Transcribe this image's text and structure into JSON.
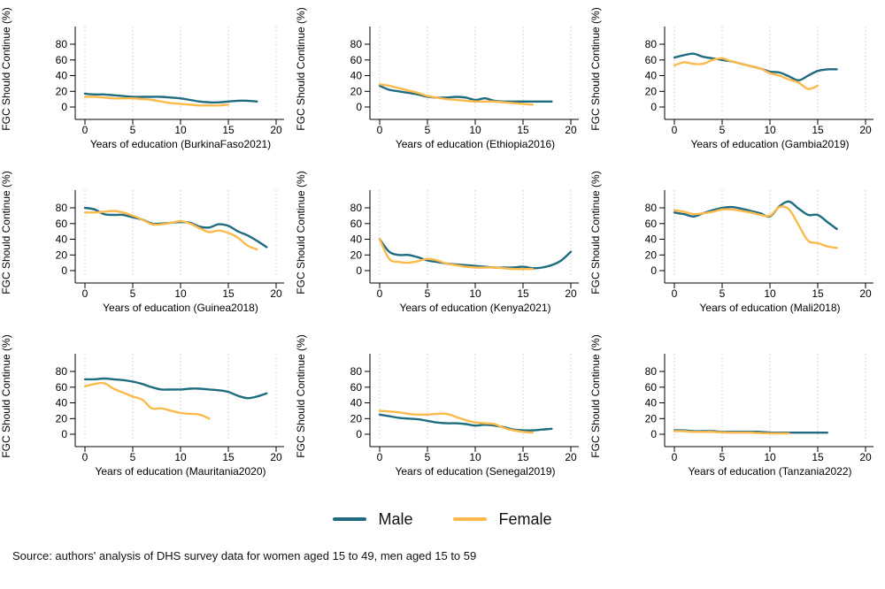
{
  "colors": {
    "male": "#1f6b80",
    "female": "#fbba4b",
    "axis": "#000000",
    "grid": "#c8c8c8",
    "text": "#000000"
  },
  "axes": {
    "ylabel": "FGC Should Continue (%)",
    "xlabel_prefix": "Years of education",
    "yticks": [
      0,
      20,
      40,
      60,
      80
    ],
    "xticks": [
      0,
      5,
      10,
      15,
      20
    ],
    "xlim": [
      0,
      20
    ],
    "grid": "vertical-dotted",
    "legend_position": "bottom-center"
  },
  "legend": {
    "items": [
      {
        "label": "Male",
        "color_key": "male"
      },
      {
        "label": "Female",
        "color_key": "female"
      }
    ]
  },
  "source_note": "Source: authors' analysis of DHS survey data for women aged 15 to 49, men aged 15 to 59",
  "chart_data": [
    {
      "type": "line",
      "xlabel": "Years of education (BurkinaFaso2021)",
      "series": [
        {
          "name": "Male",
          "x_start": 0,
          "x_step": 1,
          "values": [
            17,
            16,
            16,
            15,
            14,
            13,
            13,
            13,
            13,
            12,
            11,
            9,
            7,
            6,
            6,
            7,
            8,
            8,
            7
          ]
        },
        {
          "name": "Female",
          "x_start": 0,
          "x_step": 1,
          "values": [
            13,
            13,
            12,
            11,
            11,
            11,
            10,
            9,
            7,
            5,
            4,
            3,
            2,
            2,
            2,
            3
          ]
        }
      ]
    },
    {
      "type": "line",
      "xlabel": "Years of education (Ethiopia2016)",
      "series": [
        {
          "name": "Male",
          "x_start": 0,
          "x_step": 1,
          "values": [
            27,
            22,
            20,
            18,
            16,
            13,
            12,
            12,
            13,
            12,
            9,
            11,
            8,
            7,
            7,
            7,
            7,
            7,
            7
          ]
        },
        {
          "name": "Female",
          "x_start": 0,
          "x_step": 1,
          "values": [
            29,
            27,
            24,
            21,
            18,
            14,
            12,
            10,
            9,
            8,
            7,
            7,
            7,
            6,
            5,
            4,
            3
          ]
        }
      ]
    },
    {
      "type": "line",
      "xlabel": "Years of education (Gambia2019)",
      "series": [
        {
          "name": "Male",
          "x_start": 0,
          "x_step": 1,
          "values": [
            63,
            66,
            68,
            64,
            62,
            60,
            58,
            55,
            52,
            49,
            45,
            44,
            39,
            34,
            40,
            46,
            48,
            48
          ]
        },
        {
          "name": "Female",
          "x_start": 0,
          "x_step": 1,
          "values": [
            53,
            57,
            55,
            55,
            60,
            62,
            58,
            55,
            52,
            49,
            43,
            40,
            35,
            31,
            23,
            27
          ]
        }
      ]
    },
    {
      "type": "line",
      "xlabel": "Years of education (Guinea2018)",
      "series": [
        {
          "name": "Male",
          "x_start": 0,
          "x_step": 1,
          "values": [
            80,
            78,
            72,
            71,
            71,
            68,
            65,
            60,
            60,
            61,
            62,
            61,
            56,
            55,
            59,
            57,
            50,
            45,
            38,
            30
          ]
        },
        {
          "name": "Female",
          "x_start": 0,
          "x_step": 1,
          "values": [
            74,
            74,
            75,
            76,
            74,
            70,
            65,
            59,
            59,
            61,
            63,
            60,
            54,
            49,
            51,
            48,
            42,
            32,
            27
          ]
        }
      ]
    },
    {
      "type": "line",
      "xlabel": "Years of education (Kenya2021)",
      "series": [
        {
          "name": "Male",
          "x_start": 0,
          "x_step": 1,
          "values": [
            40,
            24,
            20,
            20,
            17,
            13,
            11,
            9,
            8,
            7,
            6,
            5,
            4,
            4,
            4,
            5,
            3,
            4,
            7,
            13,
            24
          ]
        },
        {
          "name": "Female",
          "x_start": 0,
          "x_step": 1,
          "values": [
            40,
            15,
            11,
            10,
            12,
            15,
            13,
            9,
            7,
            5,
            4,
            4,
            4,
            3,
            2,
            2,
            2
          ]
        }
      ]
    },
    {
      "type": "line",
      "xlabel": "Years of education (Mali2018)",
      "series": [
        {
          "name": "Male",
          "x_start": 0,
          "x_step": 1,
          "values": [
            74,
            72,
            69,
            73,
            77,
            80,
            81,
            79,
            76,
            73,
            69,
            82,
            88,
            79,
            71,
            71,
            62,
            53
          ]
        },
        {
          "name": "Female",
          "x_start": 0,
          "x_step": 1,
          "values": [
            77,
            75,
            72,
            73,
            75,
            78,
            78,
            76,
            74,
            71,
            70,
            81,
            78,
            58,
            38,
            35,
            31,
            29
          ]
        }
      ]
    },
    {
      "type": "line",
      "xlabel": "Years of education (Mauritania2020)",
      "series": [
        {
          "name": "Male",
          "x_start": 0,
          "x_step": 1,
          "values": [
            70,
            70,
            71,
            70,
            69,
            67,
            64,
            60,
            57,
            57,
            57,
            58,
            58,
            57,
            56,
            54,
            49,
            46,
            48,
            52
          ]
        },
        {
          "name": "Female",
          "x_start": 0,
          "x_step": 1,
          "values": [
            61,
            64,
            65,
            58,
            53,
            48,
            44,
            33,
            33,
            30,
            27,
            26,
            25,
            20
          ]
        }
      ]
    },
    {
      "type": "line",
      "xlabel": "Years of education (Senegal2019)",
      "series": [
        {
          "name": "Male",
          "x_start": 0,
          "x_step": 1,
          "values": [
            25,
            23,
            21,
            20,
            19,
            17,
            15,
            14,
            14,
            13,
            11,
            12,
            11,
            9,
            6,
            5,
            5,
            6,
            7
          ]
        },
        {
          "name": "Female",
          "x_start": 0,
          "x_step": 1,
          "values": [
            30,
            29,
            28,
            26,
            25,
            25,
            26,
            26,
            22,
            18,
            15,
            14,
            13,
            8,
            5,
            3,
            2
          ]
        }
      ]
    },
    {
      "type": "line",
      "xlabel": "Years of education (Tanzania2022)",
      "series": [
        {
          "name": "Male",
          "x_start": 0,
          "x_step": 1,
          "values": [
            5,
            5,
            4,
            4,
            4,
            3,
            3,
            3,
            3,
            3,
            2,
            2,
            2,
            2,
            2,
            2,
            2
          ]
        },
        {
          "name": "Female",
          "x_start": 0,
          "x_step": 1,
          "values": [
            4,
            4,
            3,
            3,
            3,
            2.5,
            2,
            2,
            2,
            1.5,
            1,
            1,
            1
          ]
        }
      ]
    }
  ]
}
